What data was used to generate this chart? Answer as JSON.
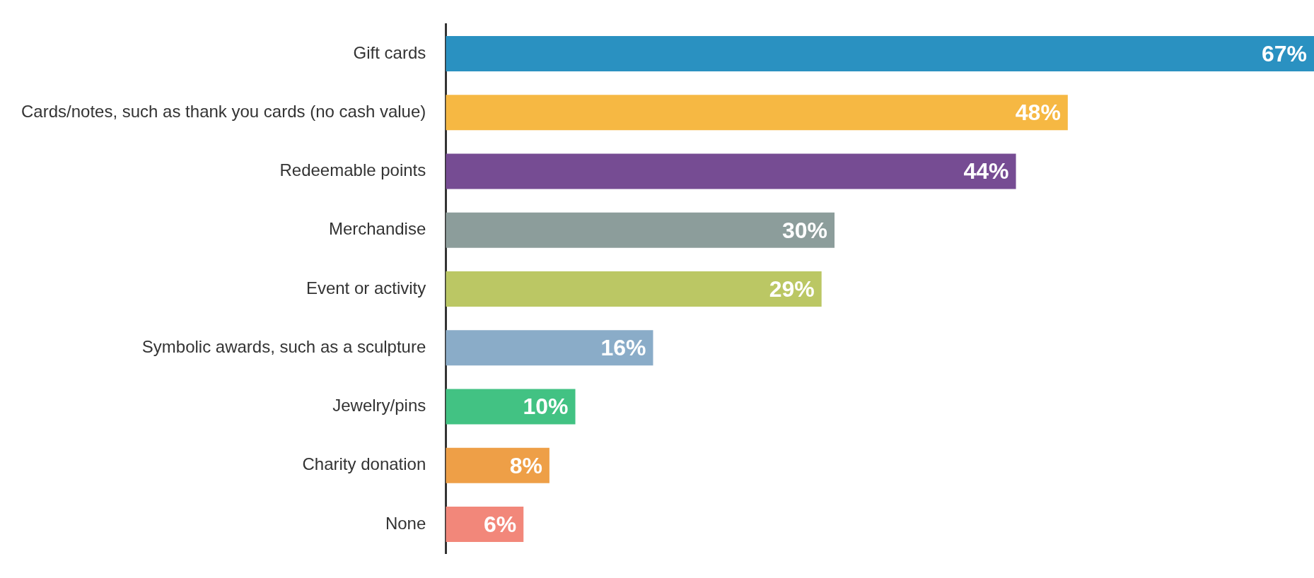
{
  "chart_data": {
    "type": "bar",
    "orientation": "horizontal",
    "categories": [
      "Gift cards",
      "Cards/notes, such as thank you cards (no cash value)",
      "Redeemable points",
      "Merchandise",
      "Event or activity",
      "Symbolic awards, such as a sculpture",
      "Jewelry/pins",
      "Charity donation",
      "None"
    ],
    "values": [
      67,
      48,
      44,
      30,
      29,
      16,
      10,
      8,
      6
    ],
    "colors": [
      "#2a91c1",
      "#f6b843",
      "#764c93",
      "#8c9d9b",
      "#bbc764",
      "#8aacc8",
      "#42c283",
      "#ee9f47",
      "#f2877a"
    ],
    "value_labels": [
      "67%",
      "48%",
      "44%",
      "30%",
      "29%",
      "16%",
      "10%",
      "8%",
      "6%"
    ],
    "legend": false,
    "tick_labels": "y"
  }
}
